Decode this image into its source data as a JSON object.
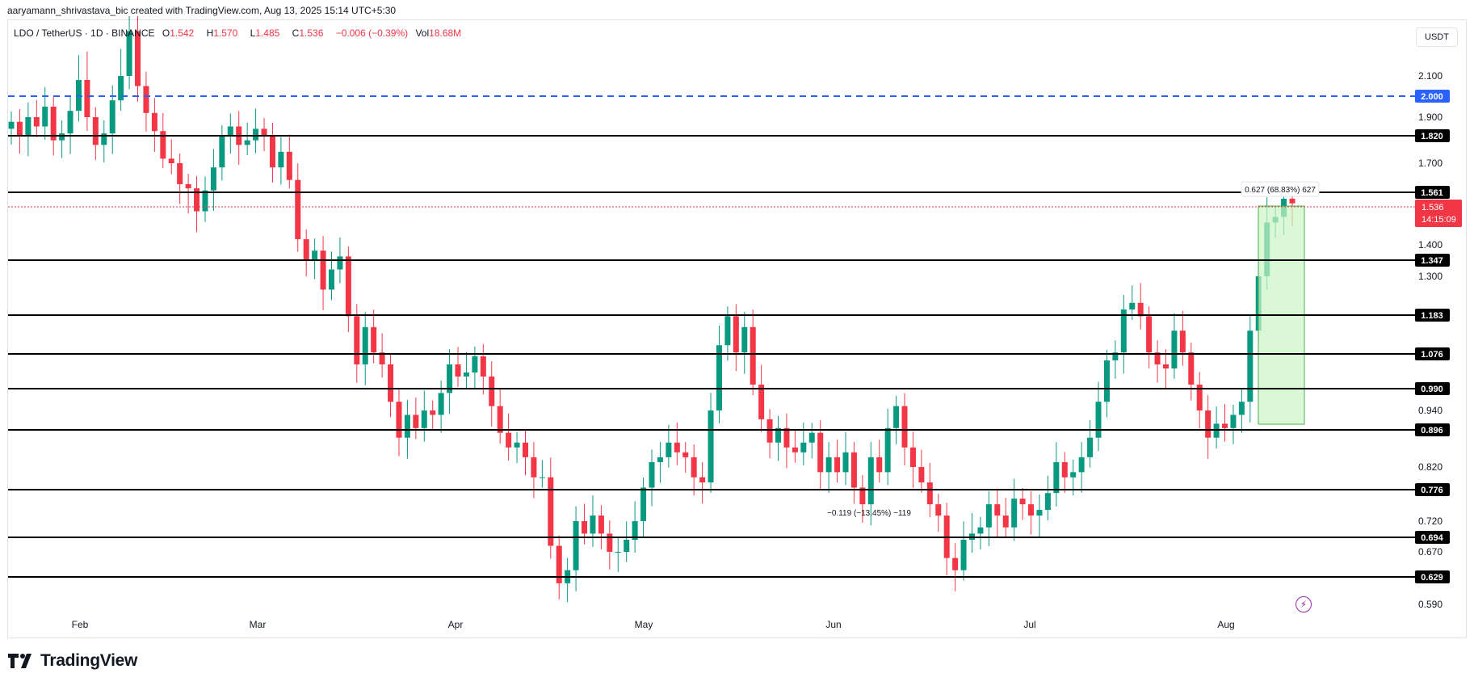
{
  "header": {
    "credit": "aaryamann_shrivastava_bic created with TradingView.com, Aug 13, 2025 15:14 UTC+5:30"
  },
  "legend": {
    "symbol": "LDO / TetherUS · 1D · BINANCE",
    "o_label": "O",
    "o_value": "1.542",
    "h_label": "H",
    "h_value": "1.570",
    "l_label": "L",
    "l_value": "1.485",
    "c_label": "C",
    "c_value": "1.536",
    "change": "−0.006 (−0.39%)",
    "vol_label": "Vol",
    "vol_value": "18.68M"
  },
  "currency_button": "USDT",
  "logo_text": "TradingView",
  "colors": {
    "up": "#089981",
    "down": "#f23645",
    "level_line": "#000000",
    "dashed_level": "#2962ff",
    "measure_fill": "#ccf5c4",
    "measure_stroke": "#4caf50"
  },
  "chart_data": {
    "type": "candlestick",
    "pair": "LDO/USDT",
    "timeframe": "1D",
    "exchange": "BINANCE",
    "y_axis_ticks": [
      "2.100",
      "1.900",
      "1.700",
      "1.400",
      "1.300",
      "0.940",
      "0.820",
      "0.720",
      "0.670",
      "0.590"
    ],
    "x_axis_ticks": [
      "Feb",
      "Mar",
      "Apr",
      "May",
      "Jun",
      "Jul",
      "Aug"
    ],
    "horizontal_levels": [
      {
        "value": 2.0,
        "label": "2.000",
        "style": "dashed-blue"
      },
      {
        "value": 1.82,
        "label": "1.820"
      },
      {
        "value": 1.561,
        "label": "1.561"
      },
      {
        "value": 1.347,
        "label": "1.347"
      },
      {
        "value": 1.183,
        "label": "1.183"
      },
      {
        "value": 1.076,
        "label": "1.076"
      },
      {
        "value": 0.99,
        "label": "0.990"
      },
      {
        "value": 0.896,
        "label": "0.896"
      },
      {
        "value": 0.776,
        "label": "0.776"
      },
      {
        "value": 0.694,
        "label": "0.694"
      },
      {
        "value": 0.629,
        "label": "0.629"
      }
    ],
    "last_price": {
      "label": "1.536",
      "countdown": "14:15:09"
    },
    "annotations": [
      {
        "text": "0.627 (68.83%) 627"
      },
      {
        "text": "−0.119 (−13.45%) −119"
      }
    ],
    "closes": [
      1.88,
      1.82,
      1.9,
      1.86,
      1.95,
      1.8,
      1.83,
      1.93,
      2.08,
      1.9,
      1.78,
      1.83,
      1.98,
      2.1,
      2.25,
      2.05,
      1.92,
      1.84,
      1.72,
      1.7,
      1.6,
      1.58,
      1.52,
      1.57,
      1.68,
      1.82,
      1.86,
      1.78,
      1.8,
      1.85,
      1.82,
      1.68,
      1.75,
      1.62,
      1.42,
      1.35,
      1.38,
      1.26,
      1.32,
      1.36,
      1.18,
      1.05,
      1.15,
      1.08,
      1.05,
      0.96,
      0.88,
      0.93,
      0.9,
      0.94,
      0.93,
      0.98,
      1.05,
      1.02,
      1.03,
      1.07,
      1.02,
      0.95,
      0.89,
      0.86,
      0.87,
      0.84,
      0.8,
      0.8,
      0.68,
      0.62,
      0.64,
      0.72,
      0.7,
      0.73,
      0.7,
      0.67,
      0.67,
      0.69,
      0.72,
      0.78,
      0.83,
      0.84,
      0.87,
      0.85,
      0.84,
      0.8,
      0.79,
      0.94,
      1.1,
      1.18,
      1.08,
      1.15,
      1.0,
      0.92,
      0.87,
      0.9,
      0.86,
      0.85,
      0.87,
      0.89,
      0.81,
      0.84,
      0.81,
      0.85,
      0.78,
      0.75,
      0.84,
      0.81,
      0.9,
      0.95,
      0.86,
      0.82,
      0.79,
      0.75,
      0.73,
      0.66,
      0.64,
      0.69,
      0.7,
      0.71,
      0.75,
      0.73,
      0.71,
      0.76,
      0.75,
      0.73,
      0.74,
      0.77,
      0.83,
      0.8,
      0.81,
      0.84,
      0.88,
      0.96,
      1.06,
      1.08,
      1.2,
      1.22,
      1.18,
      1.08,
      1.05,
      1.04,
      1.14,
      1.08,
      1.0,
      0.94,
      0.88,
      0.91,
      0.9,
      0.93,
      0.96,
      1.14,
      1.3,
      1.48,
      1.5,
      1.55,
      1.542
    ]
  }
}
